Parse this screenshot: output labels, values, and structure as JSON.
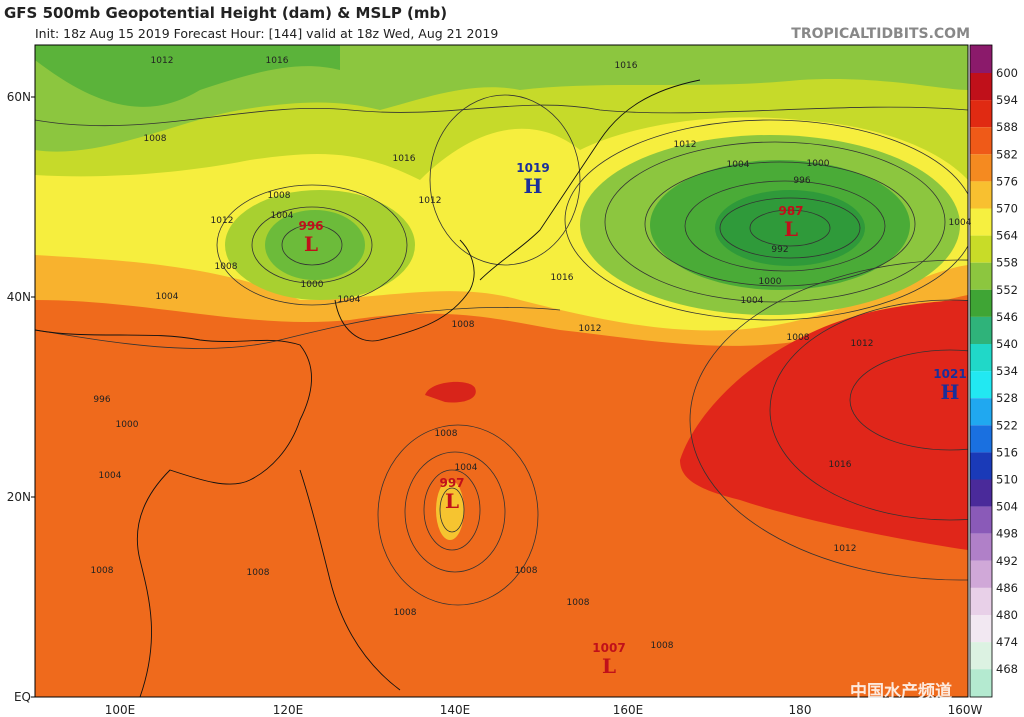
{
  "header": {
    "title": "GFS 500mb Geopotential Height (dam) & MSLP (mb)",
    "subtitle": "Init: 18z Aug 15 2019   Forecast Hour: [144]   valid at 18z Wed, Aug 21 2019",
    "site": "TROPICALTIDBITS.COM"
  },
  "lat_labels": [
    "60N",
    "40N",
    "20N",
    "EQ"
  ],
  "lon_labels": [
    "100E",
    "120E",
    "140E",
    "160E",
    "180",
    "160W"
  ],
  "colorbar": [
    {
      "label": "600",
      "color": "#c0101a"
    },
    {
      "label": "594",
      "color": "#e02a12"
    },
    {
      "label": "588",
      "color": "#ef5a18"
    },
    {
      "label": "582",
      "color": "#f58a20"
    },
    {
      "label": "576",
      "color": "#f8c030"
    },
    {
      "label": "570",
      "color": "#f6f040"
    },
    {
      "label": "564",
      "color": "#c8dc28"
    },
    {
      "label": "558",
      "color": "#8cc63f"
    },
    {
      "label": "552",
      "color": "#3fa535"
    },
    {
      "label": "546",
      "color": "#2fb37a"
    },
    {
      "label": "540",
      "color": "#20d8c8"
    },
    {
      "label": "534",
      "color": "#22e8f2"
    },
    {
      "label": "528",
      "color": "#20a8f0"
    },
    {
      "label": "522",
      "color": "#1a70e0"
    },
    {
      "label": "516",
      "color": "#1a3ab8"
    },
    {
      "label": "510",
      "color": "#4a2a9a"
    },
    {
      "label": "504",
      "color": "#8a5ab8"
    },
    {
      "label": "498",
      "color": "#b080c8"
    },
    {
      "label": "492",
      "color": "#d0a8d8"
    },
    {
      "label": "486",
      "color": "#e8d0e8"
    },
    {
      "label": "480",
      "color": "#f2e8f2"
    },
    {
      "label": "474",
      "color": "#dcf2e2"
    },
    {
      "label": "468",
      "color": "#b4ead0"
    }
  ],
  "colorbar_top_color": "#8b1a6b",
  "centers": [
    {
      "letter": "L",
      "value": "996"
    },
    {
      "letter": "H",
      "value": "1019"
    },
    {
      "letter": "L",
      "value": "987"
    },
    {
      "letter": "H",
      "value": "1021"
    },
    {
      "letter": "L",
      "value": "997"
    },
    {
      "letter": "L",
      "value": "1007"
    }
  ],
  "contour_labels": [
    "1012",
    "1016",
    "1016",
    "1008",
    "1012",
    "1016",
    "1004",
    "1000",
    "996",
    "1008",
    "1012",
    "1004",
    "1012",
    "1004",
    "992",
    "1008",
    "1016",
    "1000",
    "1004",
    "1004",
    "1000",
    "1004",
    "1008",
    "1012",
    "1008",
    "1012",
    "996",
    "1000",
    "1008",
    "1004",
    "1004",
    "1016",
    "1012",
    "1008",
    "1008",
    "1008",
    "1008",
    "1008",
    "1008"
  ],
  "watermark": "中国水产频道"
}
